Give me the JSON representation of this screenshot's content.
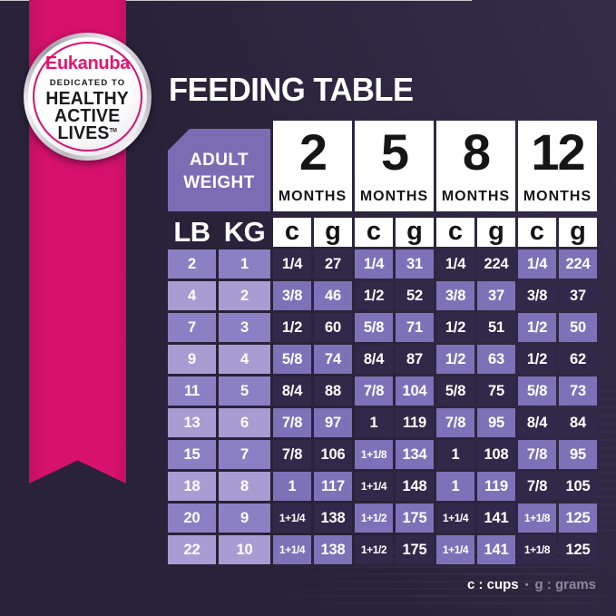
{
  "title": "FEEDING TABLE",
  "badge": {
    "brand": "Eukanuba",
    "tagline": "DEDICATED TO",
    "claim_line1": "HEALTHY",
    "claim_line2": "ACTIVE",
    "claim_line3": "LIVES",
    "trademark": "TM"
  },
  "table": {
    "corner_label_line1": "ADULT",
    "corner_label_line2": "WEIGHT",
    "months": [
      {
        "number": "2",
        "label": "MONTHS"
      },
      {
        "number": "5",
        "label": "MONTHS"
      },
      {
        "number": "8",
        "label": "MONTHS"
      },
      {
        "number": "12",
        "label": "MONTHS"
      }
    ],
    "unit_headers": [
      "LB",
      "KG",
      "c",
      "g",
      "c",
      "g",
      "c",
      "g",
      "c",
      "g"
    ],
    "rows": [
      {
        "lb": "2",
        "kg": "1",
        "values": [
          "1/4",
          "27",
          "1/4",
          "31",
          "1/4",
          "224",
          "1/4",
          "224"
        ]
      },
      {
        "lb": "4",
        "kg": "2",
        "values": [
          "3/8",
          "46",
          "1/2",
          "52",
          "3/8",
          "37",
          "3/8",
          "37"
        ]
      },
      {
        "lb": "7",
        "kg": "3",
        "values": [
          "1/2",
          "60",
          "5/8",
          "71",
          "1/2",
          "51",
          "1/2",
          "50"
        ]
      },
      {
        "lb": "9",
        "kg": "4",
        "values": [
          "5/8",
          "74",
          "8/4",
          "87",
          "1/2",
          "63",
          "1/2",
          "62"
        ]
      },
      {
        "lb": "11",
        "kg": "5",
        "values": [
          "8/4",
          "88",
          "7/8",
          "104",
          "5/8",
          "75",
          "5/8",
          "73"
        ]
      },
      {
        "lb": "13",
        "kg": "6",
        "values": [
          "7/8",
          "97",
          "1",
          "119",
          "7/8",
          "95",
          "8/4",
          "84"
        ]
      },
      {
        "lb": "15",
        "kg": "7",
        "values": [
          "7/8",
          "106",
          "1+1/8",
          "134",
          "1",
          "108",
          "7/8",
          "95"
        ]
      },
      {
        "lb": "18",
        "kg": "8",
        "values": [
          "1",
          "117",
          "1+1/4",
          "148",
          "1",
          "119",
          "7/8",
          "105"
        ]
      },
      {
        "lb": "20",
        "kg": "9",
        "values": [
          "1+1/4",
          "138",
          "1+1/2",
          "175",
          "1+1/4",
          "141",
          "1+1/8",
          "125"
        ]
      },
      {
        "lb": "22",
        "kg": "10",
        "values": [
          "1+1/4",
          "138",
          "1+1/2",
          "175",
          "1+1/4",
          "141",
          "1+1/8",
          "125"
        ]
      }
    ]
  },
  "legend": {
    "cups": "c : cups",
    "separator": "•",
    "grams": "g : grams"
  },
  "colors": {
    "background": "#2a2239",
    "ribbon_pink": "#d7126e",
    "brand_pink": "#e6146f",
    "cell_dark": "#312949",
    "cell_purple": "#7d71b8",
    "weight_cell_medium": "#8c80c4",
    "weight_cell_light": "#a89dd3",
    "corner_box": "#7a6db4",
    "legend_gray": "#8e8a9e"
  },
  "chart_data": {
    "type": "table",
    "title": "FEEDING TABLE",
    "columns": [
      "Adult Weight LB",
      "Adult Weight KG",
      "2 Months c",
      "2 Months g",
      "5 Months c",
      "5 Months g",
      "8 Months c",
      "8 Months g",
      "12 Months c",
      "12 Months g"
    ],
    "rows": [
      [
        "2",
        "1",
        "1/4",
        "27",
        "1/4",
        "31",
        "1/4",
        "224",
        "1/4",
        "224"
      ],
      [
        "4",
        "2",
        "3/8",
        "46",
        "1/2",
        "52",
        "3/8",
        "37",
        "3/8",
        "37"
      ],
      [
        "7",
        "3",
        "1/2",
        "60",
        "5/8",
        "71",
        "1/2",
        "51",
        "1/2",
        "50"
      ],
      [
        "9",
        "4",
        "5/8",
        "74",
        "8/4",
        "87",
        "1/2",
        "63",
        "1/2",
        "62"
      ],
      [
        "11",
        "5",
        "8/4",
        "88",
        "7/8",
        "104",
        "5/8",
        "75",
        "5/8",
        "73"
      ],
      [
        "13",
        "6",
        "7/8",
        "97",
        "1",
        "119",
        "7/8",
        "95",
        "8/4",
        "84"
      ],
      [
        "15",
        "7",
        "7/8",
        "106",
        "1+1/8",
        "134",
        "1",
        "108",
        "7/8",
        "95"
      ],
      [
        "18",
        "8",
        "1",
        "117",
        "1+1/4",
        "148",
        "1",
        "119",
        "7/8",
        "105"
      ],
      [
        "20",
        "9",
        "1+1/4",
        "138",
        "1+1/2",
        "175",
        "1+1/4",
        "141",
        "1+1/8",
        "125"
      ],
      [
        "22",
        "10",
        "1+1/4",
        "138",
        "1+1/2",
        "175",
        "1+1/4",
        "141",
        "1+1/8",
        "125"
      ]
    ],
    "units_note": "c : cups • g : grams"
  }
}
